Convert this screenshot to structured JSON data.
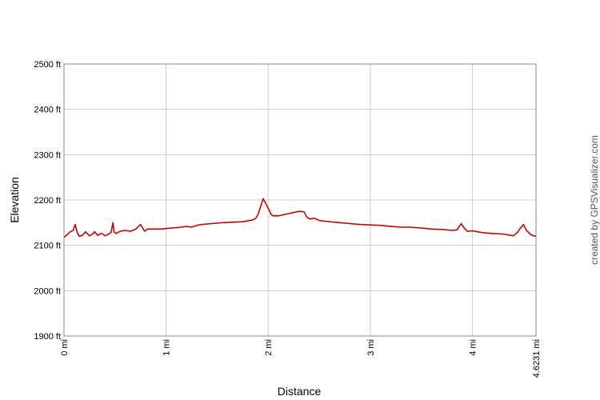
{
  "chart_data": {
    "type": "line",
    "xlabel": "Distance",
    "ylabel": "Elevation",
    "xlim": [
      0,
      4.6231
    ],
    "ylim": [
      1900,
      2500
    ],
    "x_ticks": [
      {
        "value": 0,
        "label": "0 mi"
      },
      {
        "value": 1,
        "label": "1 mi"
      },
      {
        "value": 2,
        "label": "2 mi"
      },
      {
        "value": 3,
        "label": "3 mi"
      },
      {
        "value": 4,
        "label": "4 mi"
      },
      {
        "value": 4.6231,
        "label": "4.6231 mi"
      }
    ],
    "y_ticks": [
      {
        "value": 1900,
        "label": "1900 ft"
      },
      {
        "value": 2000,
        "label": "2000 ft"
      },
      {
        "value": 2100,
        "label": "2100 ft"
      },
      {
        "value": 2200,
        "label": "2200 ft"
      },
      {
        "value": 2300,
        "label": "2300 ft"
      },
      {
        "value": 2400,
        "label": "2400 ft"
      },
      {
        "value": 2500,
        "label": "2500 ft"
      }
    ],
    "grid": true,
    "line_color": "#cc0000",
    "series": [
      {
        "x": [
          0.0,
          0.03,
          0.06,
          0.09,
          0.11,
          0.13,
          0.15,
          0.18,
          0.21,
          0.25,
          0.28,
          0.3,
          0.33,
          0.36,
          0.38,
          0.4,
          0.43,
          0.46,
          0.48,
          0.49,
          0.51,
          0.55,
          0.6,
          0.65,
          0.7,
          0.73,
          0.75,
          0.77,
          0.79,
          0.82,
          0.86,
          0.95,
          1.05,
          1.15,
          1.2,
          1.25,
          1.3,
          1.35,
          1.45,
          1.55,
          1.65,
          1.75,
          1.85,
          1.88,
          1.9,
          1.93,
          1.95,
          1.97,
          2.0,
          2.03,
          2.05,
          2.1,
          2.2,
          2.3,
          2.35,
          2.38,
          2.41,
          2.45,
          2.5,
          2.6,
          2.7,
          2.8,
          2.9,
          3.0,
          3.1,
          3.2,
          3.3,
          3.4,
          3.5,
          3.6,
          3.7,
          3.8,
          3.85,
          3.89,
          3.92,
          3.95,
          4.0,
          4.1,
          4.2,
          4.3,
          4.4,
          4.44,
          4.47,
          4.5,
          4.53,
          4.57,
          4.6,
          4.6231
        ],
        "y": [
          2118,
          2123,
          2130,
          2133,
          2146,
          2128,
          2120,
          2122,
          2130,
          2121,
          2125,
          2130,
          2122,
          2126,
          2125,
          2121,
          2124,
          2128,
          2150,
          2130,
          2126,
          2131,
          2133,
          2131,
          2135,
          2142,
          2146,
          2138,
          2131,
          2136,
          2136,
          2136,
          2138,
          2140,
          2142,
          2140,
          2144,
          2146,
          2148,
          2150,
          2151,
          2152,
          2156,
          2160,
          2168,
          2188,
          2203,
          2195,
          2182,
          2168,
          2165,
          2165,
          2170,
          2175,
          2174,
          2162,
          2158,
          2160,
          2155,
          2152,
          2150,
          2148,
          2146,
          2145,
          2144,
          2142,
          2140,
          2140,
          2138,
          2136,
          2135,
          2133,
          2134,
          2148,
          2138,
          2131,
          2132,
          2128,
          2126,
          2125,
          2121,
          2128,
          2138,
          2146,
          2133,
          2124,
          2121,
          2120
        ]
      }
    ]
  },
  "credit": "created by GPSVisualizer.com"
}
